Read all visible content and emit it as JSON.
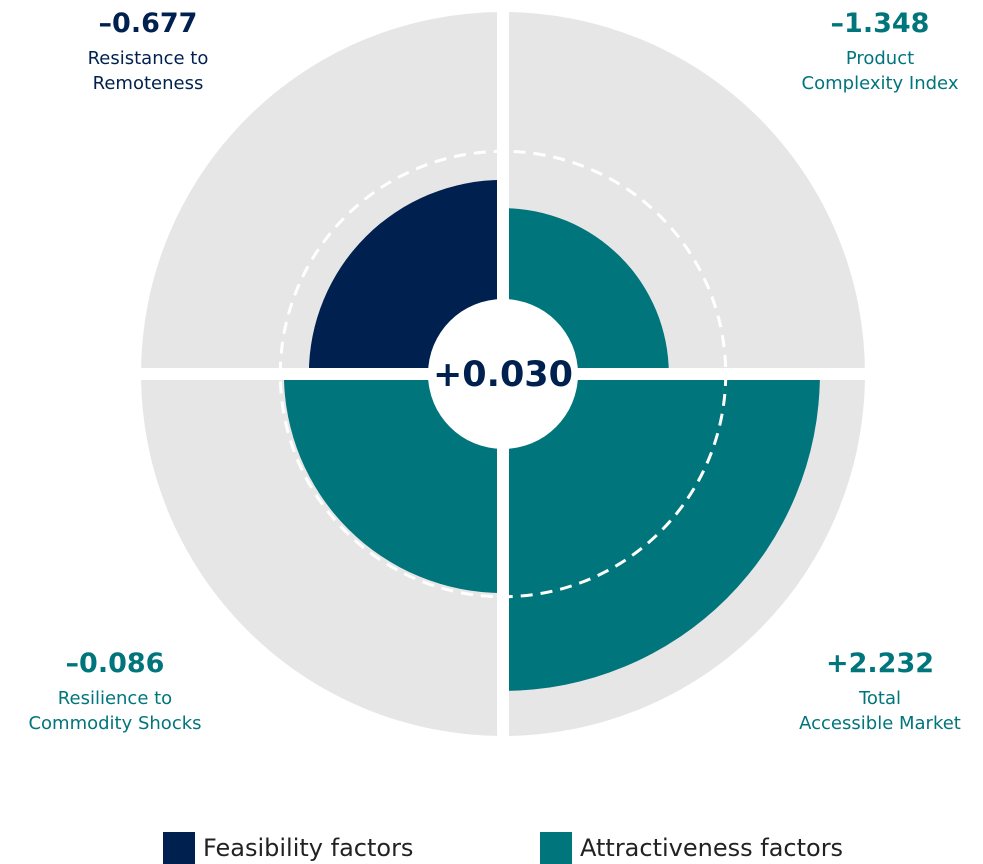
{
  "chart_data": {
    "type": "polar",
    "categories": [
      "Resistance to\nRemoteness",
      "Product\nComplexity Index",
      "Total\nAccessible Market",
      "Resilience to\nCommodity Shocks"
    ],
    "series": [
      {
        "name": "Feasibility factors",
        "color": "#00204f",
        "values": [
          -0.677,
          null,
          null,
          null
        ],
        "value_labels": [
          "–0.677",
          null,
          null,
          null
        ]
      },
      {
        "name": "Attractiveness factors",
        "color": "#00757c",
        "values": [
          null,
          -1.348,
          2.232,
          -0.086
        ],
        "value_labels": [
          null,
          "–1.348",
          "+2.232",
          "–0.086"
        ]
      }
    ],
    "total": {
      "value": 0.03,
      "label": "+0.030"
    },
    "rlim": [
      -3.5,
      3.3
    ],
    "rticks": [
      0
    ],
    "background_color": "#e6e6e6"
  }
}
